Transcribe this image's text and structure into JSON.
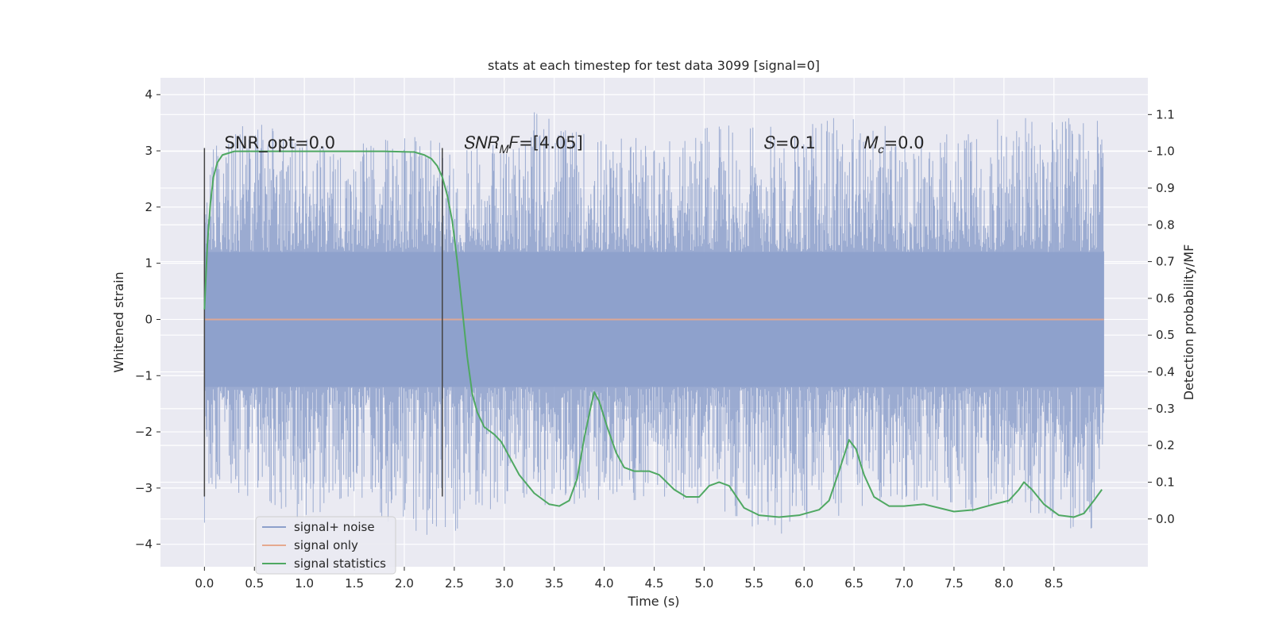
{
  "chart_data": {
    "type": "line",
    "title": "stats at each timestep for test data 3099 [signal=0]",
    "xlabel": "Time (s)",
    "ylabel": "Whitened strain",
    "y2label": "Detection probability/MF",
    "xlim": [
      -0.44,
      9.44
    ],
    "ylim": [
      -4.4,
      4.3
    ],
    "y2lim": [
      -0.13,
      1.2
    ],
    "xticks": [
      0.0,
      0.5,
      1.0,
      1.5,
      2.0,
      2.5,
      3.0,
      3.5,
      4.0,
      4.5,
      5.0,
      5.5,
      6.0,
      6.5,
      7.0,
      7.5,
      8.0,
      8.5
    ],
    "xtick_labels": [
      "0.0",
      "0.5",
      "1.0",
      "1.5",
      "2.0",
      "2.5",
      "3.0",
      "3.5",
      "4.0",
      "4.5",
      "5.0",
      "5.5",
      "6.0",
      "6.5",
      "7.0",
      "7.5",
      "8.0",
      "8.5"
    ],
    "yticks": [
      -4,
      -3,
      -2,
      -1,
      0,
      1,
      2,
      3,
      4
    ],
    "ytick_labels": [
      "−4",
      "−3",
      "−2",
      "−1",
      "0",
      "1",
      "2",
      "3",
      "4"
    ],
    "y2ticks": [
      0.0,
      0.1,
      0.2,
      0.3,
      0.4,
      0.5,
      0.6,
      0.7,
      0.8,
      0.9,
      1.0,
      1.1
    ],
    "y2tick_labels": [
      "0.0",
      "0.1",
      "0.2",
      "0.3",
      "0.4",
      "0.5",
      "0.6",
      "0.7",
      "0.8",
      "0.9",
      "1.0",
      "1.1"
    ],
    "grid": true,
    "legend_location": "lower-left",
    "series": [
      {
        "name": "signal+ noise",
        "axis": "left",
        "style": "dense-noise",
        "color": "#8da0cb",
        "x_range": [
          0.0,
          9.0
        ],
        "envelope_max": [
          [
            0.0,
            3.0
          ],
          [
            0.5,
            3.6
          ],
          [
            1.0,
            3.3
          ],
          [
            1.5,
            3.2
          ],
          [
            2.0,
            3.3
          ],
          [
            2.5,
            3.1
          ],
          [
            3.0,
            3.2
          ],
          [
            3.35,
            3.9
          ],
          [
            3.5,
            3.5
          ],
          [
            4.0,
            3.3
          ],
          [
            4.5,
            3.3
          ],
          [
            5.0,
            3.4
          ],
          [
            5.5,
            3.6
          ],
          [
            6.0,
            3.4
          ],
          [
            6.2,
            3.7
          ],
          [
            6.5,
            3.6
          ],
          [
            7.0,
            3.4
          ],
          [
            7.5,
            3.3
          ],
          [
            8.0,
            3.6
          ],
          [
            8.5,
            3.6
          ],
          [
            9.0,
            3.6
          ]
        ],
        "envelope_min": [
          [
            0.0,
            -3.1
          ],
          [
            0.5,
            -3.2
          ],
          [
            1.0,
            -3.6
          ],
          [
            1.5,
            -3.1
          ],
          [
            2.0,
            -3.9
          ],
          [
            2.5,
            -3.8
          ],
          [
            3.0,
            -3.3
          ],
          [
            3.5,
            -3.4
          ],
          [
            4.0,
            -3.3
          ],
          [
            4.5,
            -3.2
          ],
          [
            5.0,
            -3.3
          ],
          [
            5.5,
            -3.8
          ],
          [
            5.8,
            -4.0
          ],
          [
            6.0,
            -3.6
          ],
          [
            6.5,
            -3.5
          ],
          [
            7.0,
            -3.3
          ],
          [
            7.5,
            -3.4
          ],
          [
            8.0,
            -3.5
          ],
          [
            8.5,
            -3.7
          ],
          [
            9.0,
            -3.8
          ]
        ]
      },
      {
        "name": "signal only",
        "axis": "left",
        "color": "#e5a98f",
        "points": [
          [
            0.0,
            0.0
          ],
          [
            9.0,
            0.0
          ]
        ]
      },
      {
        "name": "signal statistics",
        "axis": "right",
        "color": "#4fa862",
        "points": [
          [
            0.0,
            0.57
          ],
          [
            0.03,
            0.75
          ],
          [
            0.06,
            0.86
          ],
          [
            0.09,
            0.93
          ],
          [
            0.13,
            0.97
          ],
          [
            0.18,
            0.99
          ],
          [
            0.3,
            1.0
          ],
          [
            1.0,
            1.0
          ],
          [
            1.8,
            1.0
          ],
          [
            2.1,
            0.998
          ],
          [
            2.2,
            0.99
          ],
          [
            2.27,
            0.98
          ],
          [
            2.33,
            0.96
          ],
          [
            2.38,
            0.93
          ],
          [
            2.43,
            0.88
          ],
          [
            2.48,
            0.81
          ],
          [
            2.53,
            0.7
          ],
          [
            2.58,
            0.57
          ],
          [
            2.63,
            0.44
          ],
          [
            2.68,
            0.34
          ],
          [
            2.73,
            0.29
          ],
          [
            2.8,
            0.25
          ],
          [
            2.9,
            0.23
          ],
          [
            2.97,
            0.21
          ],
          [
            3.05,
            0.17
          ],
          [
            3.15,
            0.12
          ],
          [
            3.3,
            0.07
          ],
          [
            3.45,
            0.04
          ],
          [
            3.55,
            0.035
          ],
          [
            3.65,
            0.05
          ],
          [
            3.73,
            0.11
          ],
          [
            3.8,
            0.22
          ],
          [
            3.87,
            0.31
          ],
          [
            3.9,
            0.345
          ],
          [
            3.95,
            0.32
          ],
          [
            4.03,
            0.25
          ],
          [
            4.12,
            0.18
          ],
          [
            4.2,
            0.14
          ],
          [
            4.3,
            0.13
          ],
          [
            4.45,
            0.13
          ],
          [
            4.55,
            0.12
          ],
          [
            4.7,
            0.08
          ],
          [
            4.82,
            0.06
          ],
          [
            4.95,
            0.06
          ],
          [
            5.05,
            0.09
          ],
          [
            5.15,
            0.1
          ],
          [
            5.25,
            0.09
          ],
          [
            5.4,
            0.03
          ],
          [
            5.55,
            0.01
          ],
          [
            5.75,
            0.005
          ],
          [
            5.95,
            0.01
          ],
          [
            6.15,
            0.025
          ],
          [
            6.25,
            0.05
          ],
          [
            6.35,
            0.13
          ],
          [
            6.45,
            0.215
          ],
          [
            6.52,
            0.19
          ],
          [
            6.6,
            0.12
          ],
          [
            6.7,
            0.06
          ],
          [
            6.85,
            0.035
          ],
          [
            7.0,
            0.035
          ],
          [
            7.2,
            0.04
          ],
          [
            7.35,
            0.03
          ],
          [
            7.5,
            0.02
          ],
          [
            7.7,
            0.025
          ],
          [
            7.9,
            0.04
          ],
          [
            8.05,
            0.05
          ],
          [
            8.15,
            0.08
          ],
          [
            8.2,
            0.1
          ],
          [
            8.28,
            0.08
          ],
          [
            8.4,
            0.04
          ],
          [
            8.55,
            0.01
          ],
          [
            8.7,
            0.005
          ],
          [
            8.8,
            0.015
          ],
          [
            8.9,
            0.05
          ],
          [
            8.98,
            0.08
          ]
        ]
      }
    ],
    "vlines": [
      {
        "x": 0.0,
        "ymin": -3.15,
        "ymax": 3.05,
        "color": "#444444"
      },
      {
        "x": 2.38,
        "ymin": -3.15,
        "ymax": 3.05,
        "color": "#444444"
      }
    ],
    "annotations": [
      {
        "id": "snr-opt",
        "text": "SNR_opt=0.0",
        "x": 0.2,
        "y": 3.0
      },
      {
        "id": "snr-mf",
        "text": "𝑆𝑁𝑅",
        "sub": "𝑀",
        "text2": "𝐹=[4.05]",
        "x": 2.6,
        "y": 3.0
      },
      {
        "id": "s-value",
        "text": "𝑆=0.1",
        "x": 5.6,
        "y": 3.0
      },
      {
        "id": "mc-value",
        "text": "𝑀",
        "sub": "𝑐",
        "text2": "=0.0",
        "x": 6.6,
        "y": 3.0
      }
    ]
  }
}
